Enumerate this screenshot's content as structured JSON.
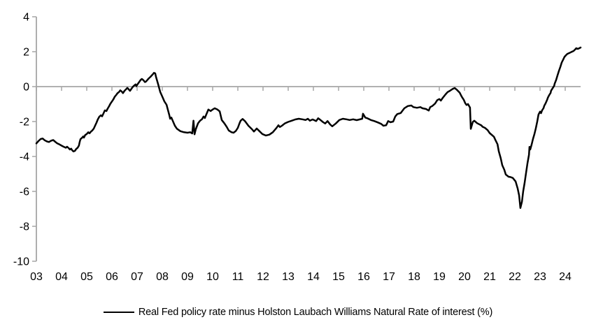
{
  "chart": {
    "legend_label": "Real Fed policy rate minus Holston Laubach Williams Natural Rate of interest (%)",
    "colors": {
      "line": "#000000",
      "axis": "#a6a6a6",
      "text": "#000000",
      "background": "#ffffff"
    }
  },
  "chart_data": {
    "type": "line",
    "title": "",
    "xlabel": "",
    "ylabel": "",
    "xlim": [
      2003.0,
      2024.7
    ],
    "ylim": [
      -10,
      4
    ],
    "grid": false,
    "zero_line": true,
    "legend_position": "bottom",
    "y_ticks": [
      4,
      2,
      0,
      -2,
      -4,
      -6,
      -8,
      -10
    ],
    "x_tick_years": [
      2003,
      2004,
      2005,
      2006,
      2007,
      2008,
      2009,
      2010,
      2011,
      2012,
      2013,
      2014,
      2015,
      2016,
      2017,
      2018,
      2019,
      2020,
      2021,
      2022,
      2023,
      2024
    ],
    "x_tick_labels": [
      "03",
      "04",
      "05",
      "06",
      "07",
      "08",
      "09",
      "10",
      "11",
      "12",
      "13",
      "14",
      "15",
      "16",
      "17",
      "18",
      "19",
      "20",
      "21",
      "22",
      "23",
      "24"
    ],
    "series": [
      {
        "name": "Real Fed policy rate minus Holston Laubach Williams Natural Rate of interest (%)",
        "color": "#000000",
        "points": [
          [
            2003.0,
            -3.25
          ],
          [
            2003.08,
            -3.12
          ],
          [
            2003.17,
            -3.0
          ],
          [
            2003.25,
            -2.97
          ],
          [
            2003.33,
            -3.07
          ],
          [
            2003.42,
            -3.14
          ],
          [
            2003.5,
            -3.17
          ],
          [
            2003.58,
            -3.1
          ],
          [
            2003.67,
            -3.06
          ],
          [
            2003.75,
            -3.16
          ],
          [
            2003.83,
            -3.25
          ],
          [
            2003.92,
            -3.31
          ],
          [
            2004.0,
            -3.38
          ],
          [
            2004.08,
            -3.44
          ],
          [
            2004.17,
            -3.5
          ],
          [
            2004.22,
            -3.44
          ],
          [
            2004.28,
            -3.52
          ],
          [
            2004.33,
            -3.6
          ],
          [
            2004.38,
            -3.55
          ],
          [
            2004.42,
            -3.64
          ],
          [
            2004.47,
            -3.71
          ],
          [
            2004.53,
            -3.68
          ],
          [
            2004.58,
            -3.57
          ],
          [
            2004.64,
            -3.5
          ],
          [
            2004.69,
            -3.38
          ],
          [
            2004.72,
            -3.17
          ],
          [
            2004.75,
            -3.01
          ],
          [
            2004.81,
            -2.93
          ],
          [
            2004.86,
            -2.85
          ],
          [
            2004.89,
            -2.92
          ],
          [
            2004.94,
            -2.77
          ],
          [
            2005.0,
            -2.71
          ],
          [
            2005.06,
            -2.61
          ],
          [
            2005.11,
            -2.67
          ],
          [
            2005.17,
            -2.57
          ],
          [
            2005.22,
            -2.51
          ],
          [
            2005.28,
            -2.4
          ],
          [
            2005.33,
            -2.24
          ],
          [
            2005.39,
            -2.06
          ],
          [
            2005.44,
            -1.88
          ],
          [
            2005.5,
            -1.72
          ],
          [
            2005.56,
            -1.64
          ],
          [
            2005.61,
            -1.7
          ],
          [
            2005.67,
            -1.52
          ],
          [
            2005.72,
            -1.36
          ],
          [
            2005.78,
            -1.4
          ],
          [
            2005.83,
            -1.26
          ],
          [
            2005.89,
            -1.12
          ],
          [
            2005.94,
            -0.98
          ],
          [
            2006.0,
            -0.85
          ],
          [
            2006.06,
            -0.72
          ],
          [
            2006.11,
            -0.58
          ],
          [
            2006.17,
            -0.48
          ],
          [
            2006.22,
            -0.38
          ],
          [
            2006.28,
            -0.31
          ],
          [
            2006.33,
            -0.21
          ],
          [
            2006.39,
            -0.28
          ],
          [
            2006.44,
            -0.37
          ],
          [
            2006.5,
            -0.24
          ],
          [
            2006.56,
            -0.15
          ],
          [
            2006.61,
            -0.07
          ],
          [
            2006.67,
            -0.16
          ],
          [
            2006.72,
            -0.24
          ],
          [
            2006.78,
            -0.11
          ],
          [
            2006.83,
            -0.01
          ],
          [
            2006.89,
            0.07
          ],
          [
            2006.94,
            0.13
          ],
          [
            2006.97,
            0.03
          ],
          [
            2007.03,
            0.16
          ],
          [
            2007.08,
            0.26
          ],
          [
            2007.14,
            0.38
          ],
          [
            2007.19,
            0.44
          ],
          [
            2007.25,
            0.37
          ],
          [
            2007.31,
            0.26
          ],
          [
            2007.36,
            0.3
          ],
          [
            2007.42,
            0.4
          ],
          [
            2007.47,
            0.48
          ],
          [
            2007.53,
            0.56
          ],
          [
            2007.58,
            0.64
          ],
          [
            2007.64,
            0.73
          ],
          [
            2007.67,
            0.79
          ],
          [
            2007.72,
            0.76
          ],
          [
            2007.75,
            0.56
          ],
          [
            2007.83,
            0.16
          ],
          [
            2007.92,
            -0.31
          ],
          [
            2008.0,
            -0.57
          ],
          [
            2008.08,
            -0.84
          ],
          [
            2008.17,
            -1.04
          ],
          [
            2008.22,
            -1.31
          ],
          [
            2008.28,
            -1.64
          ],
          [
            2008.31,
            -1.84
          ],
          [
            2008.36,
            -1.77
          ],
          [
            2008.42,
            -1.97
          ],
          [
            2008.5,
            -2.24
          ],
          [
            2008.58,
            -2.41
          ],
          [
            2008.72,
            -2.55
          ],
          [
            2008.86,
            -2.61
          ],
          [
            2009.0,
            -2.64
          ],
          [
            2009.11,
            -2.61
          ],
          [
            2009.19,
            -2.68
          ],
          [
            2009.24,
            -1.95
          ],
          [
            2009.28,
            -2.73
          ],
          [
            2009.33,
            -2.44
          ],
          [
            2009.42,
            -2.1
          ],
          [
            2009.5,
            -1.95
          ],
          [
            2009.58,
            -1.86
          ],
          [
            2009.64,
            -1.71
          ],
          [
            2009.69,
            -1.8
          ],
          [
            2009.78,
            -1.48
          ],
          [
            2009.83,
            -1.31
          ],
          [
            2009.92,
            -1.4
          ],
          [
            2010.0,
            -1.31
          ],
          [
            2010.08,
            -1.24
          ],
          [
            2010.19,
            -1.31
          ],
          [
            2010.28,
            -1.42
          ],
          [
            2010.36,
            -1.91
          ],
          [
            2010.47,
            -2.11
          ],
          [
            2010.56,
            -2.31
          ],
          [
            2010.64,
            -2.51
          ],
          [
            2010.75,
            -2.61
          ],
          [
            2010.83,
            -2.64
          ],
          [
            2010.92,
            -2.54
          ],
          [
            2011.0,
            -2.36
          ],
          [
            2011.06,
            -2.12
          ],
          [
            2011.11,
            -1.95
          ],
          [
            2011.19,
            -1.85
          ],
          [
            2011.28,
            -1.97
          ],
          [
            2011.42,
            -2.24
          ],
          [
            2011.56,
            -2.44
          ],
          [
            2011.64,
            -2.57
          ],
          [
            2011.75,
            -2.4
          ],
          [
            2011.83,
            -2.51
          ],
          [
            2011.97,
            -2.71
          ],
          [
            2012.11,
            -2.8
          ],
          [
            2012.25,
            -2.75
          ],
          [
            2012.39,
            -2.61
          ],
          [
            2012.53,
            -2.37
          ],
          [
            2012.61,
            -2.21
          ],
          [
            2012.67,
            -2.31
          ],
          [
            2012.75,
            -2.24
          ],
          [
            2012.86,
            -2.11
          ],
          [
            2013.0,
            -2.02
          ],
          [
            2013.14,
            -1.95
          ],
          [
            2013.28,
            -1.88
          ],
          [
            2013.42,
            -1.84
          ],
          [
            2013.56,
            -1.87
          ],
          [
            2013.69,
            -1.91
          ],
          [
            2013.78,
            -1.84
          ],
          [
            2013.86,
            -1.95
          ],
          [
            2013.97,
            -1.88
          ],
          [
            2014.11,
            -1.97
          ],
          [
            2014.19,
            -1.81
          ],
          [
            2014.28,
            -1.91
          ],
          [
            2014.39,
            -2.04
          ],
          [
            2014.47,
            -2.11
          ],
          [
            2014.56,
            -1.97
          ],
          [
            2014.67,
            -2.17
          ],
          [
            2014.75,
            -2.27
          ],
          [
            2014.89,
            -2.11
          ],
          [
            2015.03,
            -1.91
          ],
          [
            2015.17,
            -1.84
          ],
          [
            2015.31,
            -1.87
          ],
          [
            2015.44,
            -1.91
          ],
          [
            2015.58,
            -1.87
          ],
          [
            2015.72,
            -1.92
          ],
          [
            2015.83,
            -1.88
          ],
          [
            2015.94,
            -1.84
          ],
          [
            2015.97,
            -1.55
          ],
          [
            2016.06,
            -1.77
          ],
          [
            2016.14,
            -1.81
          ],
          [
            2016.28,
            -1.91
          ],
          [
            2016.42,
            -1.97
          ],
          [
            2016.56,
            -2.05
          ],
          [
            2016.69,
            -2.13
          ],
          [
            2016.78,
            -2.24
          ],
          [
            2016.89,
            -2.21
          ],
          [
            2016.97,
            -1.97
          ],
          [
            2017.06,
            -2.04
          ],
          [
            2017.17,
            -2.0
          ],
          [
            2017.25,
            -1.71
          ],
          [
            2017.33,
            -1.57
          ],
          [
            2017.47,
            -1.51
          ],
          [
            2017.61,
            -1.24
          ],
          [
            2017.75,
            -1.11
          ],
          [
            2017.89,
            -1.08
          ],
          [
            2017.97,
            -1.17
          ],
          [
            2018.11,
            -1.21
          ],
          [
            2018.25,
            -1.17
          ],
          [
            2018.33,
            -1.24
          ],
          [
            2018.47,
            -1.28
          ],
          [
            2018.58,
            -1.37
          ],
          [
            2018.64,
            -1.17
          ],
          [
            2018.72,
            -1.11
          ],
          [
            2018.83,
            -0.97
          ],
          [
            2018.92,
            -0.77
          ],
          [
            2019.0,
            -0.71
          ],
          [
            2019.06,
            -0.8
          ],
          [
            2019.14,
            -0.64
          ],
          [
            2019.25,
            -0.44
          ],
          [
            2019.33,
            -0.31
          ],
          [
            2019.42,
            -0.24
          ],
          [
            2019.53,
            -0.13
          ],
          [
            2019.61,
            -0.08
          ],
          [
            2019.69,
            -0.17
          ],
          [
            2019.81,
            -0.35
          ],
          [
            2019.89,
            -0.57
          ],
          [
            2019.97,
            -0.75
          ],
          [
            2020.03,
            -0.95
          ],
          [
            2020.08,
            -1.05
          ],
          [
            2020.14,
            -1.0
          ],
          [
            2020.22,
            -1.2
          ],
          [
            2020.25,
            -2.42
          ],
          [
            2020.33,
            -2.02
          ],
          [
            2020.39,
            -1.95
          ],
          [
            2020.5,
            -2.09
          ],
          [
            2020.58,
            -2.15
          ],
          [
            2020.67,
            -2.22
          ],
          [
            2020.72,
            -2.3
          ],
          [
            2020.81,
            -2.36
          ],
          [
            2020.92,
            -2.49
          ],
          [
            2021.0,
            -2.66
          ],
          [
            2021.08,
            -2.76
          ],
          [
            2021.17,
            -2.87
          ],
          [
            2021.22,
            -3.03
          ],
          [
            2021.31,
            -3.3
          ],
          [
            2021.36,
            -3.7
          ],
          [
            2021.44,
            -4.1
          ],
          [
            2021.5,
            -4.5
          ],
          [
            2021.58,
            -4.76
          ],
          [
            2021.64,
            -5.03
          ],
          [
            2021.75,
            -5.16
          ],
          [
            2021.83,
            -5.18
          ],
          [
            2021.92,
            -5.23
          ],
          [
            2022.03,
            -5.43
          ],
          [
            2022.11,
            -5.83
          ],
          [
            2022.17,
            -6.23
          ],
          [
            2022.22,
            -6.95
          ],
          [
            2022.28,
            -6.6
          ],
          [
            2022.33,
            -6.0
          ],
          [
            2022.39,
            -5.5
          ],
          [
            2022.44,
            -5.0
          ],
          [
            2022.5,
            -4.4
          ],
          [
            2022.56,
            -3.9
          ],
          [
            2022.58,
            -3.45
          ],
          [
            2022.61,
            -3.6
          ],
          [
            2022.67,
            -3.3
          ],
          [
            2022.72,
            -3.0
          ],
          [
            2022.78,
            -2.7
          ],
          [
            2022.83,
            -2.4
          ],
          [
            2022.89,
            -2.0
          ],
          [
            2022.94,
            -1.6
          ],
          [
            2023.0,
            -1.43
          ],
          [
            2023.04,
            -1.52
          ],
          [
            2023.08,
            -1.36
          ],
          [
            2023.14,
            -1.23
          ],
          [
            2023.17,
            -1.09
          ],
          [
            2023.22,
            -0.96
          ],
          [
            2023.28,
            -0.76
          ],
          [
            2023.31,
            -0.63
          ],
          [
            2023.36,
            -0.49
          ],
          [
            2023.42,
            -0.36
          ],
          [
            2023.44,
            -0.23
          ],
          [
            2023.5,
            -0.09
          ],
          [
            2023.56,
            0.05
          ],
          [
            2023.58,
            0.17
          ],
          [
            2023.64,
            0.38
          ],
          [
            2023.69,
            0.62
          ],
          [
            2023.75,
            0.9
          ],
          [
            2023.81,
            1.15
          ],
          [
            2023.86,
            1.38
          ],
          [
            2023.92,
            1.55
          ],
          [
            2023.97,
            1.7
          ],
          [
            2024.03,
            1.8
          ],
          [
            2024.08,
            1.87
          ],
          [
            2024.17,
            1.93
          ],
          [
            2024.25,
            1.99
          ],
          [
            2024.33,
            2.04
          ],
          [
            2024.39,
            2.12
          ],
          [
            2024.44,
            2.2
          ],
          [
            2024.5,
            2.16
          ],
          [
            2024.56,
            2.2
          ],
          [
            2024.61,
            2.24
          ]
        ]
      }
    ]
  }
}
